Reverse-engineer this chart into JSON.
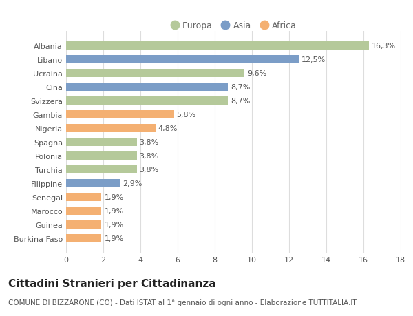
{
  "categories": [
    "Burkina Faso",
    "Guinea",
    "Marocco",
    "Senegal",
    "Filippine",
    "Turchia",
    "Polonia",
    "Spagna",
    "Nigeria",
    "Gambia",
    "Svizzera",
    "Cina",
    "Ucraina",
    "Libano",
    "Albania"
  ],
  "values": [
    1.9,
    1.9,
    1.9,
    1.9,
    2.9,
    3.8,
    3.8,
    3.8,
    4.8,
    5.8,
    8.7,
    8.7,
    9.6,
    12.5,
    16.3
  ],
  "labels": [
    "1,9%",
    "1,9%",
    "1,9%",
    "1,9%",
    "2,9%",
    "3,8%",
    "3,8%",
    "3,8%",
    "4,8%",
    "5,8%",
    "8,7%",
    "8,7%",
    "9,6%",
    "12,5%",
    "16,3%"
  ],
  "continents": [
    "Africa",
    "Africa",
    "Africa",
    "Africa",
    "Asia",
    "Europa",
    "Europa",
    "Europa",
    "Africa",
    "Africa",
    "Europa",
    "Asia",
    "Europa",
    "Asia",
    "Europa"
  ],
  "colors": {
    "Europa": "#b5c99a",
    "Asia": "#7b9dc7",
    "Africa": "#f4b072"
  },
  "legend": [
    "Europa",
    "Asia",
    "Africa"
  ],
  "legend_colors": [
    "#b5c99a",
    "#7b9dc7",
    "#f4b072"
  ],
  "xlim": [
    0,
    18
  ],
  "xticks": [
    0,
    2,
    4,
    6,
    8,
    10,
    12,
    14,
    16,
    18
  ],
  "title": "Cittadini Stranieri per Cittadinanza",
  "subtitle": "COMUNE DI BIZZARONE (CO) - Dati ISTAT al 1° gennaio di ogni anno - Elaborazione TUTTITALIA.IT",
  "bg_color": "#ffffff",
  "grid_color": "#dddddd",
  "bar_height": 0.6,
  "title_fontsize": 11,
  "subtitle_fontsize": 7.5,
  "label_fontsize": 8,
  "tick_fontsize": 8,
  "legend_fontsize": 9
}
